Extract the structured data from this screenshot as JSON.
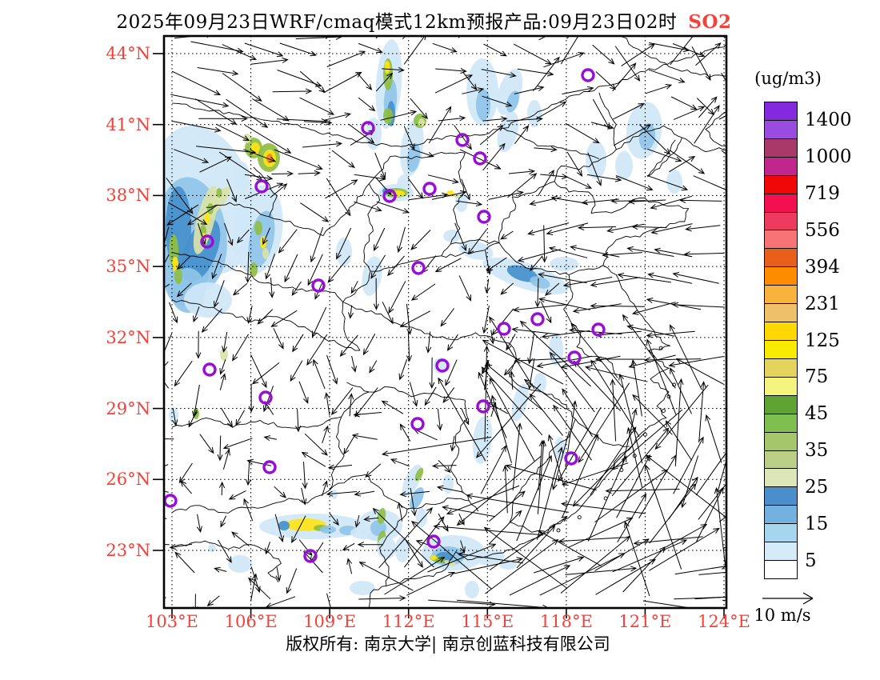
{
  "title": {
    "main": "2025年09月23日WRF/cmaq模式12km预报产品:09月23日02时",
    "pollutant": "SO2"
  },
  "axes": {
    "latitude": [
      "44°N",
      "41°N",
      "38°N",
      "35°N",
      "32°N",
      "29°N",
      "26°N",
      "23°N"
    ],
    "longitude": [
      "103°E",
      "106°E",
      "109°E",
      "112°E",
      "115°E",
      "118°E",
      "121°E",
      "124°E"
    ]
  },
  "colorbar": {
    "unit": "(ug/m3)",
    "tick_labels": [
      "1400",
      "1000",
      "719",
      "556",
      "394",
      "231",
      "125",
      "75",
      "45",
      "35",
      "25",
      "15",
      "5"
    ],
    "cell_colors": [
      "#8429dd",
      "#9a4ce0",
      "#a93a67",
      "#c1268d",
      "#f00808",
      "#f40f50",
      "#ee3a5f",
      "#f87373",
      "#e95e1b",
      "#fc8d00",
      "#f9b23c",
      "#eec06a",
      "#ffd800",
      "#f8ea00",
      "#e4d45c",
      "#f5f57e",
      "#5fa332",
      "#7fbf4f",
      "#a5c76a",
      "#bccf86",
      "#dce6b6",
      "#4a8fcb",
      "#72b2df",
      "#a5d5ef",
      "#d6ebf8",
      "#ffffff"
    ]
  },
  "wind_legend": {
    "label": "10 m/s"
  },
  "footer": {
    "copyright": "版权所有: 南京大学| 南京创蓝科技有限公司"
  },
  "theme": {
    "axis_label_color": "#f4413a",
    "pollutant_color": "#f4413a",
    "marker_color": "#990ed6"
  }
}
